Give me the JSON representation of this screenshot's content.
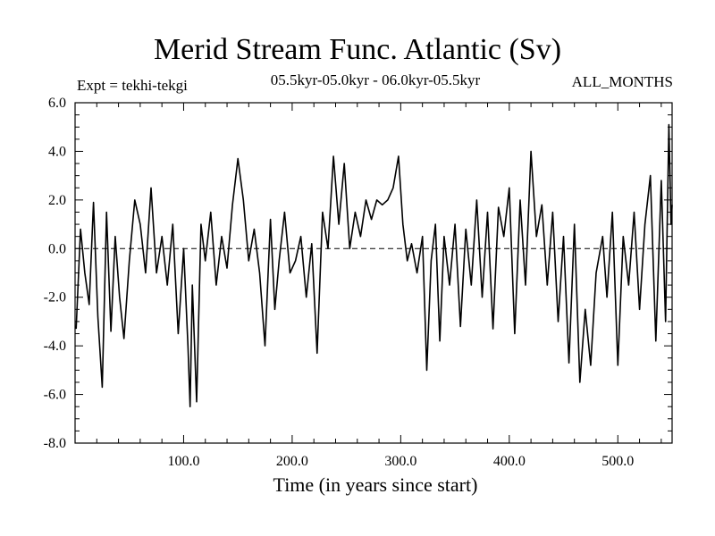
{
  "chart_data": {
    "type": "line",
    "title": "Merid Stream Func. Atlantic (Sv)",
    "left_label": "Expt = tekhi-tekgi",
    "center_label": "05.5kyr-05.0kyr - 06.0kyr-05.5kyr",
    "right_label": "ALL_MONTHS",
    "xlabel": "Time (in years since start)",
    "ylabel": "",
    "xlim": [
      0,
      550
    ],
    "ylim": [
      -8.0,
      6.0
    ],
    "x_ticks": [
      100.0,
      200.0,
      300.0,
      400.0,
      500.0
    ],
    "x_tick_labels": [
      "100.0",
      "200.0",
      "300.0",
      "400.0",
      "500.0"
    ],
    "y_ticks": [
      -8.0,
      -6.0,
      -4.0,
      -2.0,
      0.0,
      2.0,
      4.0,
      6.0
    ],
    "y_tick_labels": [
      "-8.0",
      "-6.0",
      "-4.0",
      "-2.0",
      "0.0",
      "2.0",
      "4.0",
      "6.0"
    ],
    "zero_line": 0.0,
    "series": [
      {
        "name": "Merid Stream Func. Atlantic",
        "x": [
          1,
          5,
          9,
          13,
          17,
          21,
          25,
          29,
          33,
          37,
          41,
          45,
          50,
          55,
          60,
          65,
          70,
          75,
          80,
          85,
          90,
          95,
          100,
          104,
          106,
          108,
          112,
          116,
          120,
          125,
          130,
          135,
          140,
          145,
          150,
          155,
          160,
          165,
          170,
          175,
          180,
          184,
          188,
          193,
          198,
          203,
          208,
          213,
          218,
          223,
          228,
          233,
          238,
          243,
          248,
          253,
          258,
          263,
          268,
          273,
          278,
          283,
          288,
          293,
          298,
          302,
          306,
          310,
          315,
          320,
          324,
          328,
          332,
          336,
          340,
          345,
          350,
          355,
          360,
          365,
          370,
          375,
          380,
          385,
          390,
          395,
          400,
          405,
          410,
          415,
          420,
          425,
          430,
          435,
          440,
          445,
          450,
          455,
          460,
          465,
          470,
          475,
          480,
          486,
          490,
          495,
          500,
          505,
          510,
          515,
          520,
          525,
          530,
          535,
          540,
          544,
          547,
          549,
          550
        ],
        "values": [
          -3.3,
          0.8,
          -1.0,
          -2.3,
          1.9,
          -2.8,
          -5.7,
          1.5,
          -3.4,
          0.5,
          -2.0,
          -3.7,
          -0.5,
          2.0,
          1.0,
          -1.0,
          2.5,
          -1.0,
          0.5,
          -1.5,
          1.0,
          -3.5,
          0.0,
          -4.0,
          -6.5,
          -1.5,
          -6.3,
          1.0,
          -0.5,
          1.5,
          -1.5,
          0.5,
          -0.8,
          1.8,
          3.7,
          2.0,
          -0.5,
          0.8,
          -1.0,
          -4.0,
          1.2,
          -2.5,
          -0.5,
          1.5,
          -1.0,
          -0.5,
          0.5,
          -2.0,
          0.2,
          -4.3,
          1.5,
          0.0,
          3.8,
          1.0,
          3.5,
          0.0,
          1.5,
          0.5,
          2.0,
          1.2,
          2.0,
          1.8,
          2.0,
          2.5,
          3.8,
          1.0,
          -0.5,
          0.2,
          -1.0,
          0.5,
          -5.0,
          -0.5,
          1.0,
          -3.8,
          0.5,
          -1.5,
          1.0,
          -3.2,
          0.8,
          -1.5,
          2.0,
          -2.0,
          1.5,
          -3.3,
          1.7,
          0.5,
          2.5,
          -3.5,
          2.0,
          -1.5,
          4.0,
          0.5,
          1.8,
          -1.5,
          1.5,
          -3.0,
          0.5,
          -4.7,
          1.0,
          -5.5,
          -2.5,
          -4.8,
          -1.0,
          0.5,
          -2.0,
          1.5,
          -4.8,
          0.5,
          -1.5,
          1.5,
          -2.5,
          1.0,
          3.0,
          -3.8,
          2.8,
          -3.0,
          5.1,
          1.0,
          1.8
        ]
      }
    ]
  }
}
